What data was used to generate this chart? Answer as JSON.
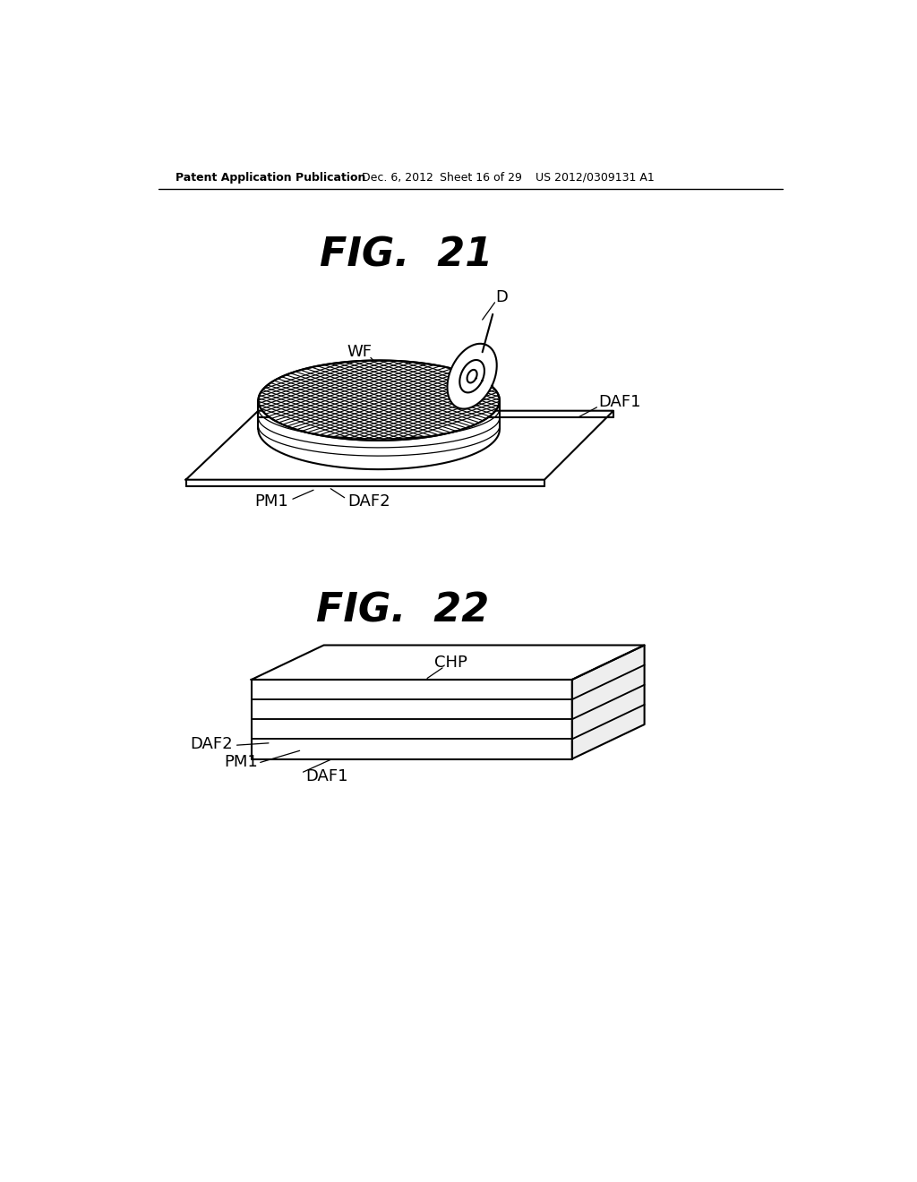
{
  "bg_color": "#ffffff",
  "header_text": "Patent Application Publication",
  "header_date": "Dec. 6, 2012",
  "header_sheet": "Sheet 16 of 29",
  "header_patent": "US 2012/0309131 A1",
  "fig21_title": "FIG.  21",
  "fig22_title": "FIG.  22",
  "line_color": "#000000",
  "line_width": 1.5
}
